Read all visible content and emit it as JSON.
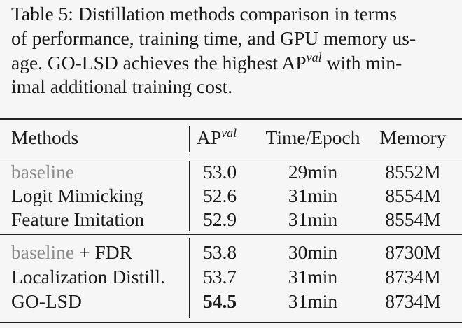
{
  "caption": {
    "lines": [
      "Table 5: Distillation methods comparison in terms",
      "of performance, training time, and GPU memory us-"
    ],
    "line3": {
      "before": "age. GO-LSD achieves the highest AP",
      "superscript": "val",
      "after": "with min-"
    },
    "line4": "imal additional training cost."
  },
  "table": {
    "header": {
      "methods": "Methods",
      "ap": "AP",
      "ap_superscript": "val",
      "time": "Time/Epoch",
      "memory": "Memory"
    },
    "groups": [
      [
        {
          "method": [
            {
              "text": "baseline",
              "muted": true
            }
          ],
          "ap": "53.0",
          "time": "29min",
          "memory": "8552M"
        },
        {
          "method": [
            {
              "text": "Logit Mimicking"
            }
          ],
          "ap": "52.6",
          "time": "31min",
          "memory": "8554M"
        },
        {
          "method": [
            {
              "text": "Feature Imitation"
            }
          ],
          "ap": "52.9",
          "time": "31min",
          "memory": "8554M"
        }
      ],
      [
        {
          "method": [
            {
              "text": "baseline",
              "muted": true
            },
            {
              "text": "+ FDR"
            }
          ],
          "ap": "53.8",
          "time": "30min",
          "memory": "8730M"
        },
        {
          "method": [
            {
              "text": "Localization Distill."
            }
          ],
          "ap": "53.7",
          "time": "31min",
          "memory": "8734M"
        },
        {
          "method": [
            {
              "text": "GO-LSD"
            }
          ],
          "ap": "54.5",
          "best": true,
          "time": "31min",
          "memory": "8734M"
        }
      ]
    ]
  }
}
